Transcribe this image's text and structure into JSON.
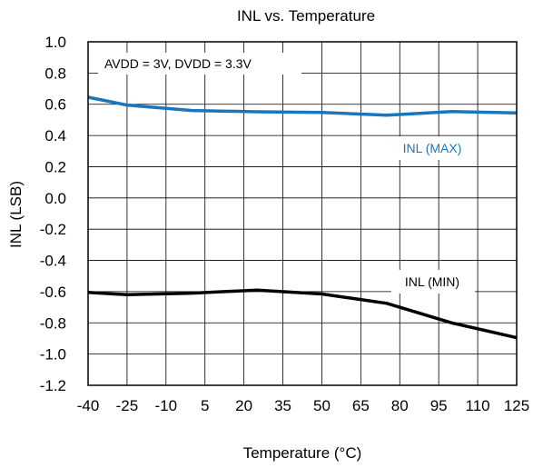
{
  "chart_data": {
    "type": "line",
    "title": "INL vs. Temperature",
    "xlabel": "Temperature (°C)",
    "ylabel": "INL (LSB)",
    "xlim": [
      -40,
      125
    ],
    "ylim": [
      -1.2,
      1.0
    ],
    "xticks": [
      -40,
      -25,
      -10,
      5,
      20,
      35,
      50,
      65,
      80,
      95,
      110,
      125
    ],
    "yticks": [
      -1.2,
      -1.0,
      -0.8,
      -0.6,
      -0.4,
      -0.2,
      0.0,
      0.2,
      0.4,
      0.6,
      0.8,
      1.0
    ],
    "ytick_labels": [
      "-1.2",
      "-1.0",
      "-0.8",
      "-0.6",
      "-0.4",
      "-0.2",
      "0.0",
      "0.2",
      "0.4",
      "0.6",
      "0.8",
      "1.0"
    ],
    "grid": true,
    "legend": "none",
    "annotation": "AVDD = 3V, DVDD = 3.3V",
    "series": [
      {
        "name": "INL (MAX)",
        "color": "#1a75bc",
        "x": [
          -40,
          -25,
          0,
          25,
          50,
          75,
          100,
          125
        ],
        "y": [
          0.645,
          0.595,
          0.56,
          0.552,
          0.548,
          0.53,
          0.553,
          0.545
        ]
      },
      {
        "name": "INL (MIN)",
        "color": "#000000",
        "x": [
          -40,
          -25,
          0,
          25,
          50,
          75,
          100,
          125
        ],
        "y": [
          -0.605,
          -0.62,
          -0.61,
          -0.59,
          -0.615,
          -0.675,
          -0.8,
          -0.895
        ]
      }
    ]
  }
}
